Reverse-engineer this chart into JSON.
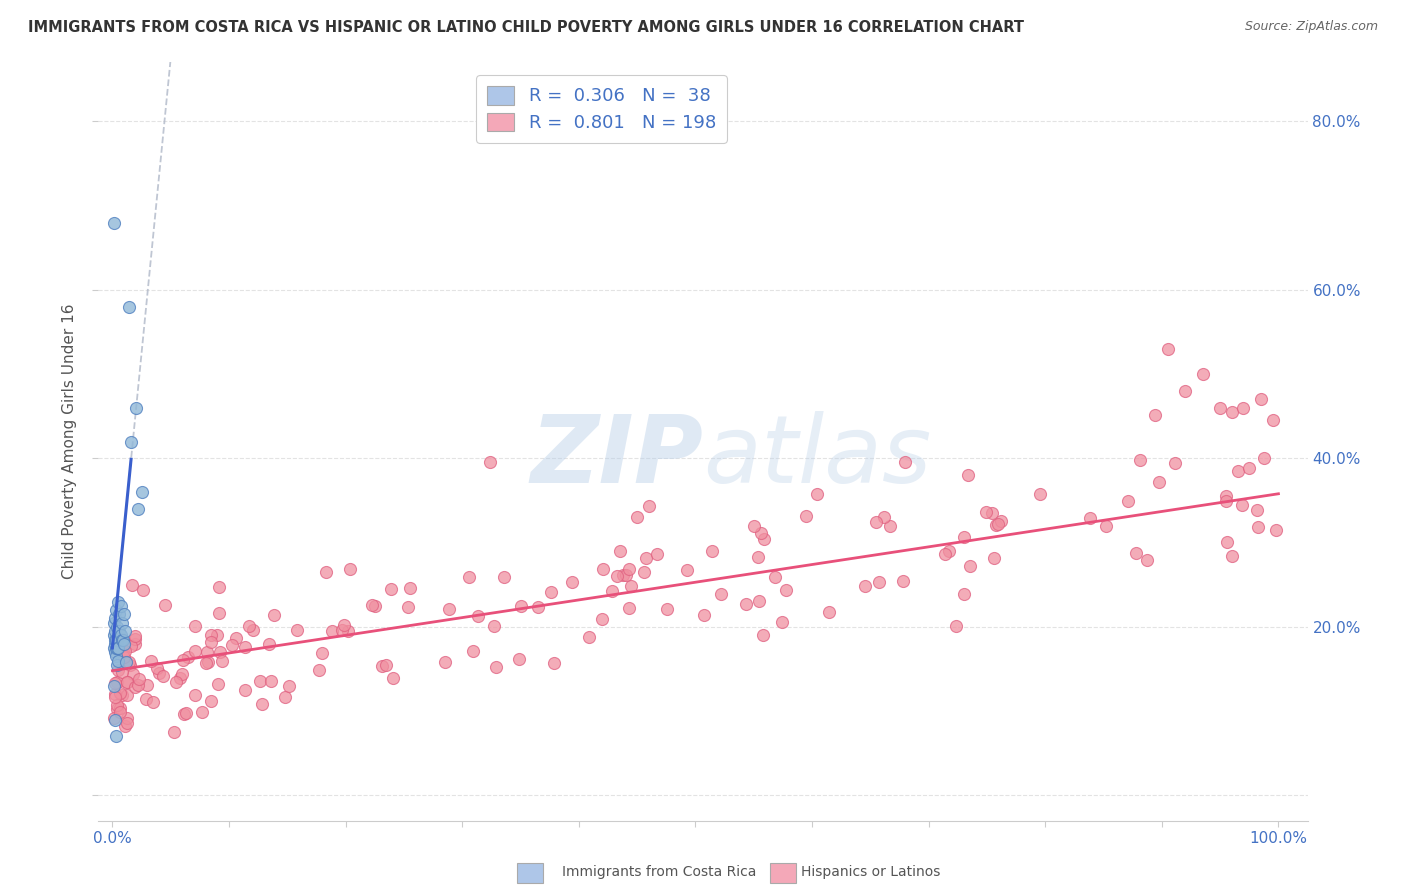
{
  "title": "IMMIGRANTS FROM COSTA RICA VS HISPANIC OR LATINO CHILD POVERTY AMONG GIRLS UNDER 16 CORRELATION CHART",
  "source": "Source: ZipAtlas.com",
  "ylabel": "Child Poverty Among Girls Under 16",
  "blue_R": 0.306,
  "blue_N": 38,
  "pink_R": 0.801,
  "pink_N": 198,
  "blue_patch_color": "#aec6e8",
  "pink_patch_color": "#f4a8b8",
  "blue_line_color": "#3a5fcd",
  "pink_line_color": "#e8507a",
  "blue_dot_color": "#90b8d8",
  "pink_dot_color": "#f090a0",
  "blue_dot_edge": "#5080c0",
  "pink_dot_edge": "#e06080",
  "watermark_color": "#ccdcec",
  "legend_label_blue": "Immigrants from Costa Rica",
  "legend_label_pink": "Hispanics or Latinos",
  "background_color": "#ffffff",
  "grid_color": "#e0e0e0",
  "title_color": "#333333",
  "source_color": "#666666",
  "axis_color": "#4472c4",
  "label_color": "#555555"
}
